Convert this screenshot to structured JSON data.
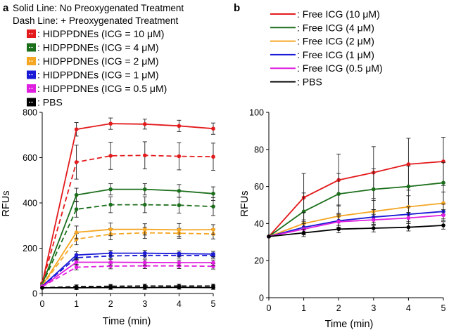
{
  "chart_data": [
    {
      "type": "line",
      "panel": "a",
      "header_lines": [
        "Solid Line: No Preoxygenated Treatment",
        "Dash Line: + Preoxygenated Treatment"
      ],
      "xlabel": "Time (min)",
      "ylabel": "RFUs",
      "x": [
        0,
        1,
        2,
        3,
        4,
        5
      ],
      "xlim": [
        0,
        5
      ],
      "ylim": [
        0,
        800
      ],
      "xticks": [
        "0",
        "1",
        "2",
        "3",
        "4",
        "5"
      ],
      "yticks": [
        "0",
        "200",
        "400",
        "600",
        "800"
      ],
      "legend_placement": "top-left",
      "series": [
        {
          "name": ": HIDPPDNEs (ICG = 10 μM)",
          "color": "#e31a1c",
          "legend": true,
          "dash": false,
          "values": [
            45,
            725,
            750,
            748,
            740,
            728
          ],
          "err": [
            0,
            30,
            25,
            22,
            25,
            25
          ]
        },
        {
          "name": ": HIDPPDNEs (ICG = 4 μM)",
          "color": "#1b6f1b",
          "legend": true,
          "dash": false,
          "values": [
            40,
            435,
            460,
            460,
            453,
            441
          ],
          "err": [
            0,
            30,
            25,
            25,
            28,
            30
          ]
        },
        {
          "name": ": HIDPPDNEs (ICG = 2 μM)",
          "color": "#f5a623",
          "legend": true,
          "dash": false,
          "values": [
            35,
            270,
            283,
            283,
            281,
            282
          ],
          "err": [
            0,
            28,
            28,
            25,
            28,
            22
          ]
        },
        {
          "name": ": HIDPPDNEs (ICG = 1 μM)",
          "color": "#1a1ad6",
          "legend": true,
          "dash": false,
          "values": [
            32,
            170,
            178,
            178,
            176,
            174
          ],
          "err": [
            0,
            15,
            12,
            12,
            12,
            12
          ]
        },
        {
          "name": ": HIDPPDNEs (ICG = 0.5 μM)",
          "color": "#e01ee0",
          "legend": true,
          "dash": false,
          "values": [
            30,
            138,
            138,
            137,
            136,
            136
          ],
          "err": [
            0,
            12,
            12,
            12,
            12,
            12
          ]
        },
        {
          "name": ": PBS",
          "color": "#000000",
          "legend": true,
          "dash": false,
          "values": [
            25,
            25,
            26,
            26,
            27,
            26
          ],
          "err": [
            0,
            8,
            8,
            8,
            8,
            8
          ]
        },
        {
          "name": "HIDPPDNEs (ICG = 10 μM) + preoxygenated",
          "color": "#e31a1c",
          "legend": false,
          "dash": true,
          "values": [
            45,
            580,
            608,
            610,
            606,
            604
          ],
          "err": [
            0,
            75,
            60,
            60,
            60,
            60
          ]
        },
        {
          "name": "HIDPPDNEs (ICG = 4 μM) + preoxygenated",
          "color": "#1b6f1b",
          "legend": false,
          "dash": true,
          "values": [
            40,
            372,
            392,
            392,
            390,
            384
          ],
          "err": [
            0,
            35,
            35,
            35,
            35,
            40
          ]
        },
        {
          "name": "HIDPPDNEs (ICG = 2 μM) + preoxygenated",
          "color": "#f5a623",
          "legend": false,
          "dash": true,
          "values": [
            35,
            240,
            262,
            268,
            266,
            263
          ],
          "err": [
            0,
            25,
            25,
            25,
            22,
            22
          ]
        },
        {
          "name": "HIDPPDNEs (ICG = 1 μM) + preoxygenated",
          "color": "#1a1ad6",
          "legend": false,
          "dash": true,
          "values": [
            32,
            158,
            166,
            168,
            168,
            167
          ],
          "err": [
            0,
            12,
            12,
            12,
            12,
            12
          ]
        },
        {
          "name": "HIDPPDNEs (ICG = 0.5 μM) + preoxygenated",
          "color": "#e01ee0",
          "legend": false,
          "dash": true,
          "values": [
            30,
            116,
            121,
            122,
            122,
            120
          ],
          "err": [
            0,
            12,
            12,
            12,
            12,
            12
          ]
        },
        {
          "name": "PBS + preoxygenated",
          "color": "#000000",
          "legend": false,
          "dash": true,
          "values": [
            25,
            30,
            32,
            33,
            33,
            33
          ],
          "err": [
            0,
            8,
            8,
            8,
            8,
            8
          ]
        }
      ]
    },
    {
      "type": "line",
      "panel": "b",
      "xlabel": "Time (min)",
      "ylabel": "RFUs",
      "x": [
        0,
        1,
        2,
        3,
        4,
        5
      ],
      "xlim": [
        0,
        5
      ],
      "ylim": [
        0,
        100
      ],
      "xticks": [
        "0",
        "1",
        "2",
        "3",
        "4",
        "5"
      ],
      "yticks": [
        "0",
        "20",
        "40",
        "60",
        "80",
        "100"
      ],
      "legend_placement": "top",
      "series": [
        {
          "name": ": Free ICG (10 μM)",
          "color": "#e31a1c",
          "legend": true,
          "dash": false,
          "values": [
            33,
            54,
            63.5,
            67.5,
            72,
            73.5
          ],
          "err": [
            0,
            13,
            14,
            14,
            14,
            13
          ]
        },
        {
          "name": ": Free ICG (4 μM)",
          "color": "#1b6f1b",
          "legend": true,
          "dash": false,
          "values": [
            33,
            46.5,
            56,
            58.5,
            60,
            62
          ],
          "err": [
            0,
            10,
            11,
            11,
            11,
            11
          ]
        },
        {
          "name": ": Free ICG (2 μM)",
          "color": "#f5a623",
          "legend": true,
          "dash": false,
          "values": [
            33,
            40,
            44,
            46.5,
            49,
            51
          ],
          "err": [
            0,
            6,
            6,
            6,
            6,
            6
          ]
        },
        {
          "name": ": Free ICG (1 μM)",
          "color": "#1a1ad6",
          "legend": true,
          "dash": false,
          "values": [
            33,
            38,
            41.5,
            43.5,
            45,
            46.5
          ],
          "err": [
            0,
            4,
            4,
            4,
            4,
            4
          ]
        },
        {
          "name": ": Free ICG (0.5 μM)",
          "color": "#e01ee0",
          "legend": true,
          "dash": false,
          "values": [
            33,
            37,
            41,
            42,
            43,
            44.5
          ],
          "err": [
            0,
            3,
            3,
            3,
            3,
            3
          ]
        },
        {
          "name": ": PBS",
          "color": "#000000",
          "legend": true,
          "dash": false,
          "values": [
            33,
            35,
            37,
            37.5,
            38,
            39
          ],
          "err": [
            0,
            2,
            2,
            2,
            2,
            2
          ]
        }
      ]
    }
  ]
}
